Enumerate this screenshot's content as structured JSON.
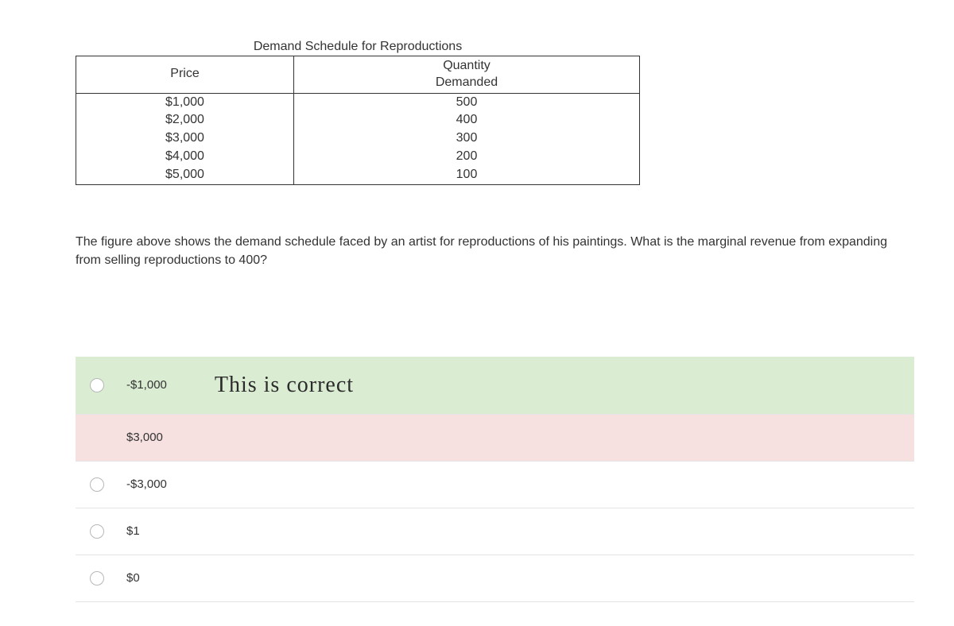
{
  "table": {
    "caption": "Demand Schedule for Reproductions",
    "headers": {
      "price": "Price",
      "qty": "Quantity\nDemanded"
    },
    "rows": [
      {
        "price": "$1,000",
        "qty": "500"
      },
      {
        "price": "$2,000",
        "qty": "400"
      },
      {
        "price": "$3,000",
        "qty": "300"
      },
      {
        "price": "$4,000",
        "qty": "200"
      },
      {
        "price": "$5,000",
        "qty": "100"
      }
    ],
    "border_color": "#333333",
    "text_color": "#333333",
    "fontsize": 16
  },
  "question": {
    "text": "The figure above shows the demand schedule faced by an artist for reproductions of his paintings. What is the marginal revenue from expanding from selling reproductions to 400?"
  },
  "options": [
    {
      "label": "-$1,000",
      "state": "correct",
      "annotation": "This  is   correct"
    },
    {
      "label": "$3,000",
      "state": "wrong",
      "annotation": ""
    },
    {
      "label": "-$3,000",
      "state": "plain",
      "annotation": ""
    },
    {
      "label": "$1",
      "state": "plain",
      "annotation": ""
    },
    {
      "label": "$0",
      "state": "plain",
      "annotation": ""
    }
  ],
  "colors": {
    "correct_bg": "#daecd2",
    "wrong_bg": "#f6e0e0",
    "plain_bg": "#ffffff",
    "divider": "#e4e4e4",
    "radio_border": "#b8b8b8"
  }
}
